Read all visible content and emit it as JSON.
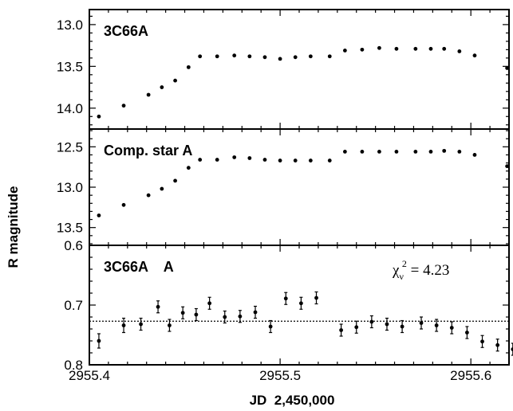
{
  "chart_data": {
    "type": "scatter",
    "xlabel": "JD  2,450,000",
    "ylabel": "R magnitude",
    "xlim": [
      2955.4,
      2955.62
    ],
    "x_ticks": [
      "2955.4",
      "2955.5",
      "2955.6"
    ],
    "grid": false,
    "panels": [
      {
        "label": "3C66A",
        "ylim": [
          14.25,
          12.82
        ],
        "y_inverted": true,
        "y_ticks": [
          "13.0",
          "13.5",
          "14.0"
        ],
        "x": [
          2955.405,
          2955.418,
          2955.431,
          2955.438,
          2955.445,
          2955.452,
          2955.458,
          2955.467,
          2955.476,
          2955.484,
          2955.492,
          2955.5,
          2955.508,
          2955.516,
          2955.526,
          2955.534,
          2955.543,
          2955.552,
          2955.561,
          2955.571,
          2955.579,
          2955.586,
          2955.594,
          2955.602,
          2955.619
        ],
        "y": [
          14.1,
          13.97,
          13.84,
          13.75,
          13.67,
          13.51,
          13.38,
          13.38,
          13.37,
          13.38,
          13.39,
          13.41,
          13.39,
          13.38,
          13.38,
          13.31,
          13.3,
          13.28,
          13.29,
          13.29,
          13.29,
          13.29,
          13.32,
          13.37,
          13.52
        ]
      },
      {
        "label": "Comp. star A",
        "ylim": [
          13.72,
          12.28
        ],
        "y_inverted": true,
        "y_ticks": [
          "12.5",
          "13.0",
          "13.5"
        ],
        "x": [
          2955.405,
          2955.418,
          2955.431,
          2955.438,
          2955.445,
          2955.452,
          2955.458,
          2955.467,
          2955.476,
          2955.484,
          2955.492,
          2955.5,
          2955.508,
          2955.516,
          2955.526,
          2955.534,
          2955.543,
          2955.552,
          2955.561,
          2955.571,
          2955.579,
          2955.586,
          2955.594,
          2955.602,
          2955.619
        ],
        "y": [
          13.35,
          13.22,
          13.1,
          13.02,
          12.92,
          12.76,
          12.66,
          12.66,
          12.63,
          12.64,
          12.66,
          12.67,
          12.67,
          12.67,
          12.67,
          12.56,
          12.56,
          12.56,
          12.56,
          12.56,
          12.56,
          12.55,
          12.56,
          12.6,
          12.74
        ]
      },
      {
        "label": "3C66A    A",
        "annotation": "χ_ν² = 4.23",
        "ylim": [
          0.8,
          0.6
        ],
        "y_inverted": true,
        "y_ticks": [
          "0.6",
          "0.7",
          "0.8"
        ],
        "reference_line": 0.727,
        "x": [
          2955.405,
          2955.418,
          2955.427,
          2955.436,
          2955.442,
          2955.449,
          2955.456,
          2955.463,
          2955.471,
          2955.479,
          2955.487,
          2955.495,
          2955.503,
          2955.511,
          2955.519,
          2955.532,
          2955.54,
          2955.548,
          2955.556,
          2955.564,
          2955.574,
          2955.582,
          2955.59,
          2955.598,
          2955.606,
          2955.614,
          2955.622
        ],
        "y": [
          0.76,
          0.734,
          0.732,
          0.703,
          0.734,
          0.713,
          0.716,
          0.697,
          0.72,
          0.719,
          0.712,
          0.736,
          0.689,
          0.697,
          0.688,
          0.742,
          0.737,
          0.728,
          0.732,
          0.736,
          0.73,
          0.734,
          0.738,
          0.746,
          0.761,
          0.767,
          0.774
        ],
        "y_err": [
          0.012,
          0.012,
          0.01,
          0.01,
          0.01,
          0.01,
          0.01,
          0.01,
          0.01,
          0.01,
          0.01,
          0.01,
          0.01,
          0.01,
          0.01,
          0.01,
          0.01,
          0.01,
          0.01,
          0.01,
          0.01,
          0.01,
          0.01,
          0.01,
          0.01,
          0.01,
          0.01
        ]
      }
    ]
  }
}
